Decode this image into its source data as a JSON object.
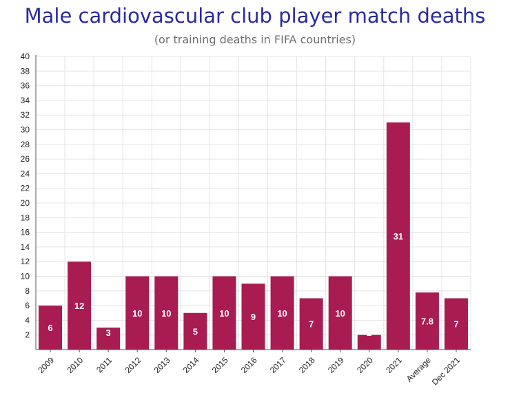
{
  "chart_data": {
    "type": "bar",
    "title": "Male cardiovascular club player match deaths",
    "subtitle": "(or training deaths in FIFA countries)",
    "xlabel": "",
    "ylabel": "",
    "categories": [
      "2009",
      "2010",
      "2011",
      "2012",
      "2013",
      "2014",
      "2015",
      "2016",
      "2017",
      "2018",
      "2019",
      "2020",
      "2021",
      "Average",
      "Dec 2021"
    ],
    "values": [
      6,
      12,
      3,
      10,
      10,
      5,
      10,
      9,
      10,
      7,
      10,
      2,
      31,
      7.8,
      7
    ],
    "data_labels": [
      "6",
      "12",
      "3",
      "10",
      "10",
      "5",
      "10",
      "9",
      "10",
      "7",
      "10",
      "2",
      "31",
      "7.8",
      "7"
    ],
    "ylim": [
      0,
      40
    ],
    "yticks": [
      "2",
      "4",
      "6",
      "8",
      "10",
      "12",
      "14",
      "16",
      "18",
      "20",
      "22",
      "24",
      "26",
      "28",
      "30",
      "32",
      "34",
      "36",
      "38",
      "40"
    ],
    "ytick_values": [
      2,
      4,
      6,
      8,
      10,
      12,
      14,
      16,
      18,
      20,
      22,
      24,
      26,
      28,
      30,
      32,
      34,
      36,
      38,
      40
    ],
    "grid": true,
    "legend": "none",
    "bar_color": "#a81c52",
    "label_color": "#ffffff",
    "title_color": "#2a2aa0"
  }
}
